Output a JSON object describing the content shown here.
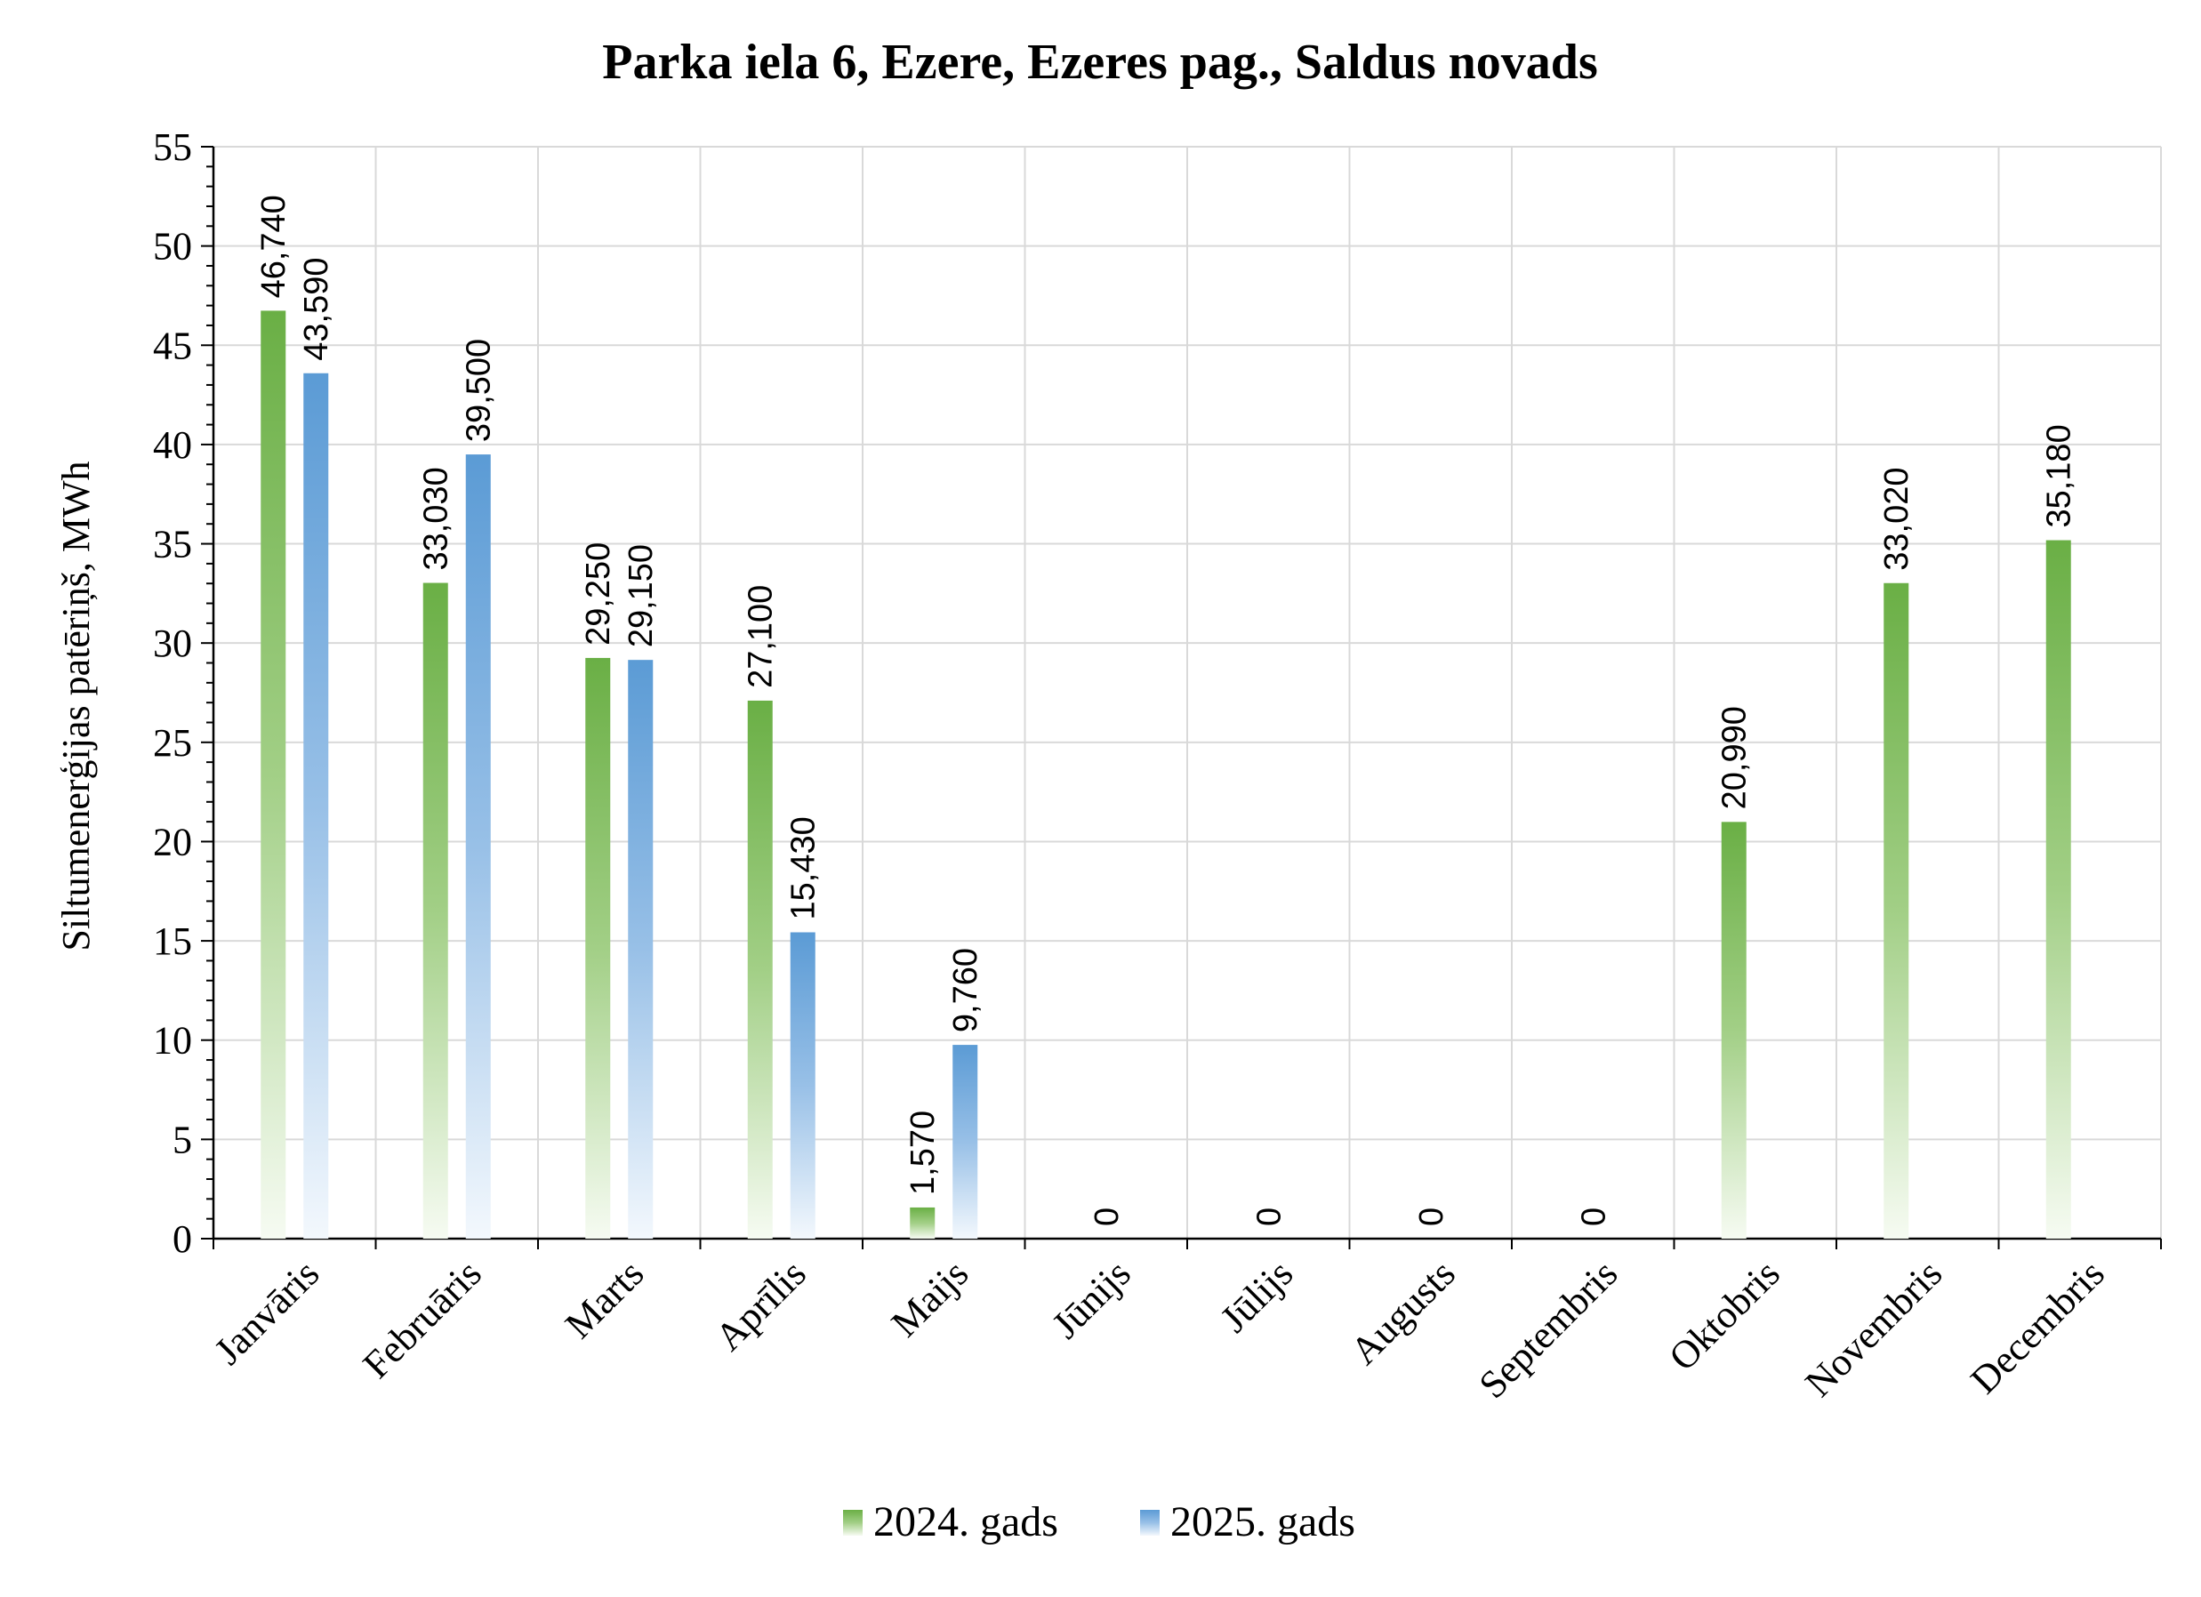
{
  "chart_data": {
    "type": "bar",
    "title": "Parka iela 6, Ezere, Ezeres pag., Saldus novads",
    "xlabel": "",
    "ylabel": "Siltumenerģijas patēriņš, MWh",
    "ylim": [
      0,
      55
    ],
    "y_ticks": [
      "0",
      "5",
      "10",
      "15",
      "20",
      "25",
      "30",
      "35",
      "40",
      "45",
      "50",
      "55"
    ],
    "grid": true,
    "legend_position": "bottom",
    "categories": [
      "Janvāris",
      "Februāris",
      "Marts",
      "Aprīlis",
      "Maijs",
      "Jūnijs",
      "Jūlijs",
      "Augusts",
      "Septembris",
      "Oktobris",
      "Novembris",
      "Decembris"
    ],
    "series": [
      {
        "name": "2024. gads",
        "color": "#6aa84f",
        "values": [
          46.74,
          33.03,
          29.25,
          27.1,
          1.57,
          0,
          0,
          0,
          0,
          20.99,
          33.02,
          35.18
        ],
        "labels": [
          "46,740",
          "33,030",
          "29,250",
          "27,100",
          "1,570",
          "0",
          "0",
          "0",
          "0",
          "20,990",
          "33,020",
          "35,180"
        ]
      },
      {
        "name": "2025. gads",
        "color": "#5b9bd5",
        "values": [
          43.59,
          39.5,
          29.15,
          15.43,
          9.76,
          null,
          null,
          null,
          null,
          null,
          null,
          null
        ],
        "labels": [
          "43,590",
          "39,500",
          "29,150",
          "15,430",
          "9,760",
          null,
          null,
          null,
          null,
          null,
          null,
          null
        ]
      }
    ]
  }
}
